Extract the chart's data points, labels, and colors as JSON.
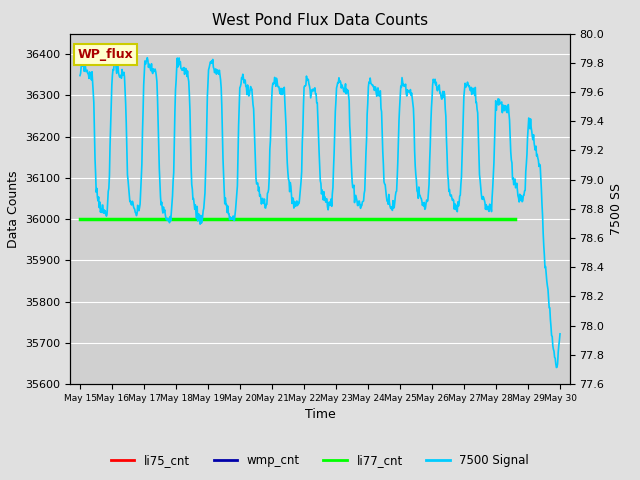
{
  "title": "West Pond Flux Data Counts",
  "xlabel": "Time",
  "ylabel_left": "Data Counts",
  "ylabel_right": "7500 SS",
  "fig_facecolor": "#e0e0e0",
  "plot_facecolor": "#d0d0d0",
  "ylim_left": [
    35600,
    36450
  ],
  "ylim_right": [
    77.6,
    80.0
  ],
  "annotation_text": "WP_flux",
  "annotation_color": "#aa0000",
  "annotation_bg": "#ffffcc",
  "annotation_border": "#cccc00",
  "li77_cnt_value": 36000,
  "li77_color": "#00ff00",
  "li75_color": "#ff0000",
  "wmp_color": "#0000aa",
  "signal_color": "#00ccff",
  "xtick_labels": [
    "May 15",
    "May 16",
    "May 17",
    "May 18",
    "May 19",
    "May 20",
    "May 21",
    "May 22",
    "May 23",
    "May 24",
    "May 25",
    "May 26",
    "May 27",
    "May 28",
    "May 29",
    "May 30"
  ]
}
